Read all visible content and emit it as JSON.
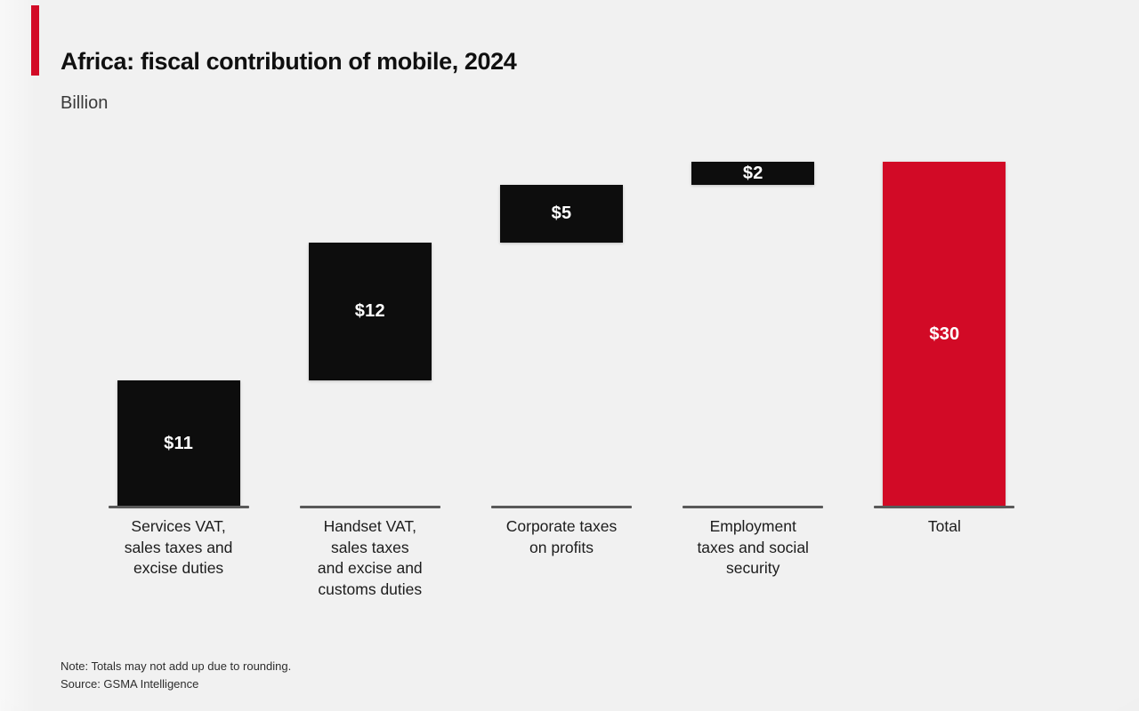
{
  "header": {
    "title": "Africa: fiscal contribution of mobile, 2024",
    "subtitle": "Billion"
  },
  "footer": {
    "note": "Note: Totals may not add up due to rounding.",
    "source": "Source: GSMA Intelligence"
  },
  "colors": {
    "accent_red": "#d20a26",
    "bar_black": "#0d0d0d",
    "baseline_gray": "#595959",
    "background": "#f1f1f1"
  },
  "chart_data": {
    "type": "bar",
    "subtype": "waterfall",
    "title": "Africa: fiscal contribution of mobile, 2024",
    "unit": "Billion",
    "xlabel": "",
    "ylabel": "Billion",
    "ylim": [
      0,
      30
    ],
    "grid": false,
    "legend": "none",
    "categories": [
      "Services VAT,\nsales taxes and\nexcise duties",
      "Handset VAT,\nsales taxes\nand excise and\ncustoms duties",
      "Corporate taxes\non profits",
      "Employment\ntaxes and social\nsecurity",
      "Total"
    ],
    "values": [
      11,
      12,
      5,
      2,
      30
    ],
    "bars": [
      {
        "category": "Services VAT,\nsales taxes and\nexcise duties",
        "value": 11,
        "label": "$11",
        "role": "increase",
        "color": "#0d0d0d"
      },
      {
        "category": "Handset VAT,\nsales taxes\nand excise and\ncustoms duties",
        "value": 12,
        "label": "$12",
        "role": "increase",
        "color": "#0d0d0d"
      },
      {
        "category": "Corporate taxes\non profits",
        "value": 5,
        "label": "$5",
        "role": "increase",
        "color": "#0d0d0d"
      },
      {
        "category": "Employment\ntaxes and social\nsecurity",
        "value": 2,
        "label": "$2",
        "role": "increase",
        "color": "#0d0d0d"
      },
      {
        "category": "Total",
        "value": 30,
        "label": "$30",
        "role": "total",
        "color": "#d20a26"
      }
    ]
  }
}
